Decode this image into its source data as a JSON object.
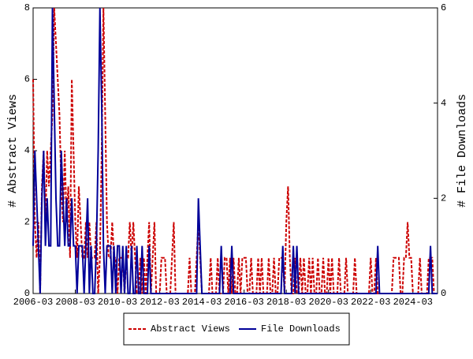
{
  "chart_data": {
    "type": "line",
    "ylabel": "# Abstract Views",
    "y2label": "# File Downloads",
    "categories": [
      "2006-03",
      null,
      null,
      null,
      null,
      null,
      null,
      null,
      null,
      null,
      null,
      null,
      null,
      null,
      null,
      null,
      null,
      null,
      null,
      null,
      null,
      null,
      null,
      null,
      "2008-03",
      null,
      null,
      null,
      null,
      null,
      null,
      null,
      null,
      null,
      null,
      null,
      null,
      null,
      null,
      null,
      null,
      null,
      null,
      null,
      null,
      null,
      null,
      null,
      "2010-03",
      null,
      null,
      null,
      null,
      null,
      null,
      null,
      null,
      null,
      null,
      null,
      null,
      null,
      null,
      null,
      null,
      null,
      null,
      null,
      null,
      null,
      null,
      null,
      "2012-03",
      null,
      null,
      null,
      null,
      null,
      null,
      null,
      null,
      null,
      null,
      null,
      null,
      null,
      null,
      null,
      null,
      null,
      null,
      null,
      null,
      null,
      null,
      null,
      "2014-03",
      null,
      null,
      null,
      null,
      null,
      null,
      null,
      null,
      null,
      null,
      null,
      null,
      null,
      null,
      null,
      null,
      null,
      null,
      null,
      null,
      null,
      null,
      null,
      "2016-03",
      null,
      null,
      null,
      null,
      null,
      null,
      null,
      null,
      null,
      null,
      null,
      null,
      null,
      null,
      null,
      null,
      null,
      null,
      null,
      null,
      null,
      null,
      null,
      "2018-03",
      null,
      null,
      null,
      null,
      null,
      null,
      null,
      null,
      null,
      null,
      null,
      null,
      null,
      null,
      null,
      null,
      null,
      null,
      null,
      null,
      null,
      null,
      null,
      "2020-03",
      null,
      null,
      null,
      null,
      null,
      null,
      null,
      null,
      null,
      null,
      null,
      null,
      null,
      null,
      null,
      null,
      null,
      null,
      null,
      null,
      null,
      null,
      null,
      "2022-03",
      null,
      null,
      null,
      null,
      null,
      null,
      null,
      null,
      null,
      null,
      null,
      null,
      null,
      null,
      null,
      null,
      null,
      null,
      null,
      null,
      null,
      null,
      null,
      "2024-03",
      null,
      null,
      null,
      null,
      null,
      null,
      null,
      null,
      null,
      null,
      null,
      null,
      null,
      null
    ],
    "series": [
      {
        "name": "Abstract Views",
        "color": "#cc0000",
        "dash": true,
        "axis": "y",
        "values": [
          6,
          2,
          1,
          2,
          0,
          3,
          4,
          2,
          4,
          3,
          4,
          5,
          8,
          7,
          6,
          5,
          3,
          2,
          4,
          2,
          3,
          1,
          6,
          4,
          2,
          1,
          3,
          2,
          1,
          1,
          2,
          1,
          2,
          1,
          1,
          1,
          2,
          0,
          1,
          4,
          8,
          5,
          2,
          1,
          1,
          2,
          1,
          1,
          0,
          1,
          1,
          1,
          0,
          1,
          1,
          2,
          1,
          2,
          1,
          0,
          0,
          1,
          0,
          1,
          0,
          1,
          2,
          0,
          1,
          2,
          0,
          0,
          0,
          1,
          1,
          1,
          0,
          0,
          0,
          1,
          2,
          0,
          0,
          0,
          0,
          0,
          0,
          0,
          0,
          1,
          0,
          0,
          0,
          1,
          2,
          1,
          0,
          0,
          0,
          0,
          0,
          1,
          0,
          0,
          0,
          1,
          0,
          0,
          0,
          1,
          1,
          0,
          1,
          0,
          1,
          0,
          0,
          1,
          0,
          1,
          1,
          1,
          0,
          0,
          1,
          0,
          0,
          0,
          1,
          0,
          1,
          0,
          0,
          0,
          1,
          0,
          0,
          1,
          0,
          0,
          1,
          1,
          1,
          0,
          2,
          3,
          1,
          0,
          0,
          1,
          0,
          0,
          1,
          0,
          1,
          0,
          0,
          1,
          0,
          1,
          0,
          0,
          1,
          0,
          0,
          1,
          0,
          0,
          1,
          0,
          1,
          0,
          0,
          0,
          1,
          0,
          0,
          0,
          1,
          0,
          0,
          0,
          0,
          1,
          0,
          0,
          0,
          0,
          0,
          0,
          0,
          0,
          1,
          0,
          0,
          1,
          0,
          0,
          0,
          0,
          0,
          0,
          0,
          0,
          0,
          1,
          1,
          1,
          1,
          0,
          0,
          1,
          1,
          2,
          1,
          1,
          0,
          0,
          0,
          0,
          1,
          0,
          0,
          0,
          0,
          1,
          1,
          1,
          0,
          0,
          0
        ]
      },
      {
        "name": "File Downloads",
        "color": "#000099",
        "dash": false,
        "axis": "y2",
        "values": [
          1,
          3,
          2,
          1,
          0,
          2,
          3,
          1,
          2,
          1,
          1,
          6,
          4,
          2,
          1,
          1,
          3,
          2,
          1,
          2,
          1,
          1,
          2,
          1,
          1,
          0,
          1,
          1,
          1,
          0,
          1,
          2,
          0,
          1,
          0,
          0,
          1,
          3,
          6,
          4,
          1,
          0,
          1,
          1,
          1,
          0,
          1,
          0,
          1,
          1,
          0,
          1,
          0,
          1,
          0,
          0,
          1,
          0,
          0,
          1,
          0,
          0,
          1,
          0,
          0,
          0,
          1,
          0,
          0,
          0,
          0,
          0,
          0,
          0,
          0,
          0,
          0,
          0,
          0,
          0,
          0,
          0,
          0,
          0,
          0,
          0,
          0,
          0,
          0,
          0,
          0,
          0,
          0,
          0,
          2,
          1,
          0,
          0,
          0,
          0,
          0,
          0,
          0,
          0,
          0,
          0,
          0,
          1,
          0,
          0,
          0,
          0,
          0,
          1,
          0,
          0,
          0,
          0,
          0,
          0,
          0,
          0,
          0,
          0,
          0,
          0,
          0,
          0,
          0,
          0,
          0,
          0,
          0,
          0,
          0,
          0,
          0,
          0,
          0,
          0,
          0,
          0,
          1,
          0,
          0,
          0,
          0,
          0,
          1,
          0,
          1,
          0,
          0,
          0,
          0,
          0,
          0,
          0,
          0,
          0,
          0,
          0,
          0,
          0,
          0,
          0,
          0,
          0,
          0,
          0,
          0,
          0,
          0,
          0,
          0,
          0,
          0,
          0,
          0,
          0,
          0,
          0,
          0,
          0,
          0,
          0,
          0,
          0,
          0,
          0,
          0,
          0,
          0,
          0,
          0,
          0,
          1,
          0,
          0,
          0,
          0,
          0,
          0,
          0,
          0,
          0,
          0,
          0,
          0,
          0,
          0,
          0,
          0,
          0,
          0,
          0,
          0,
          0,
          0,
          0,
          0,
          0,
          0,
          0,
          0,
          0,
          1,
          0,
          0,
          0,
          0
        ]
      }
    ],
    "ylim": [
      0,
      8
    ],
    "yticks": [
      0,
      2,
      4,
      6,
      8
    ],
    "y2lim": [
      0,
      6
    ],
    "y2ticks": [
      0,
      2,
      4,
      6
    ],
    "legend": "bottom"
  }
}
